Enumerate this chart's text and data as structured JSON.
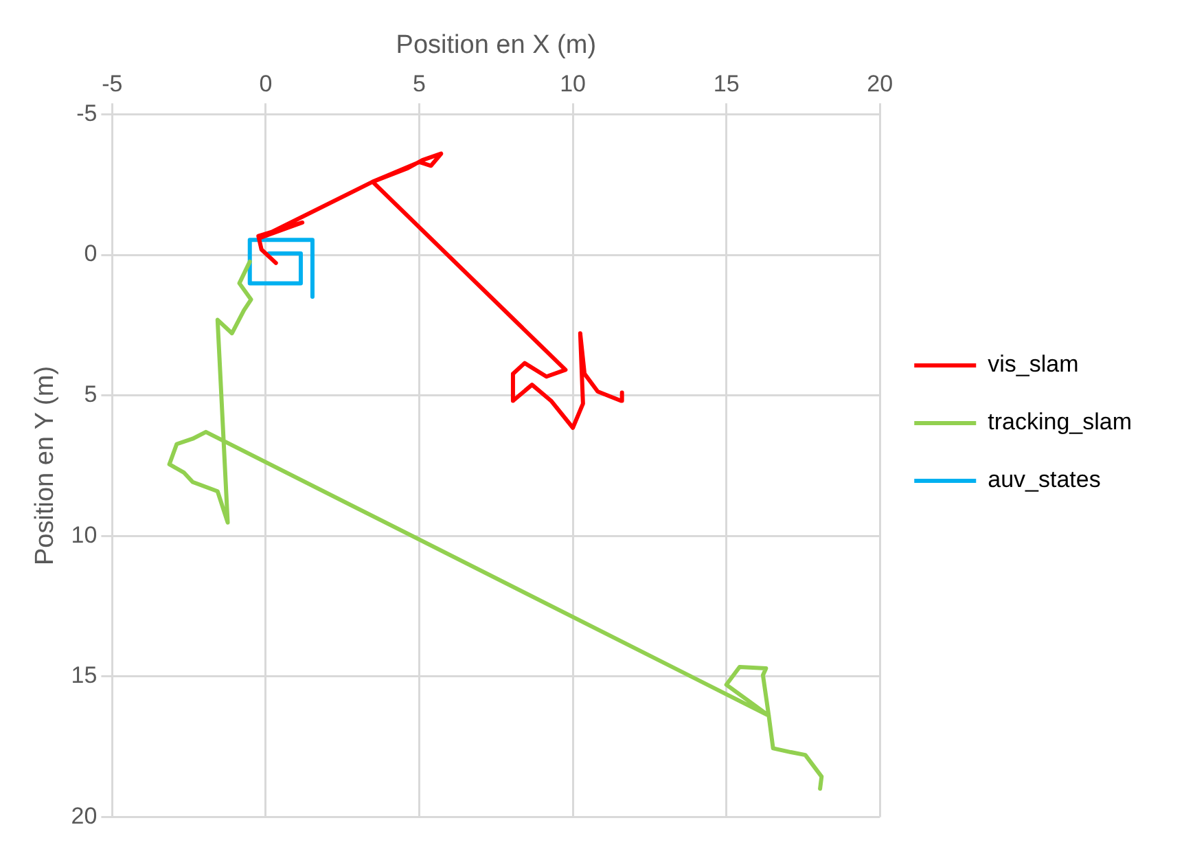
{
  "chart_data": {
    "type": "line",
    "xlabel": "Position en X (m)",
    "ylabel": "Position en Y (m)",
    "xlim": [
      -5,
      20
    ],
    "ylim": [
      20,
      -5
    ],
    "xticks": [
      -5,
      0,
      5,
      10,
      15,
      20
    ],
    "yticks": [
      -5,
      0,
      5,
      10,
      15,
      20
    ],
    "grid": true,
    "legend": "right",
    "marker": "none",
    "line_style": "solid",
    "series": [
      {
        "name": "vis_slam",
        "color": "#ff0000",
        "x": [
          0.33,
          -0.14,
          -0.24,
          1.19,
          -0.2,
          3.48,
          4.62,
          5.1,
          5.71,
          5.38,
          5.0,
          3.48,
          9.76,
          9.14,
          8.43,
          8.05,
          8.05,
          8.67,
          9.29,
          10.0,
          10.33,
          10.24,
          10.38,
          10.81,
          11.57,
          11.6
        ],
        "values": [
          0.29,
          -0.19,
          -0.67,
          -1.15,
          -0.6,
          -2.6,
          -3.08,
          -3.37,
          -3.6,
          -3.17,
          -3.3,
          -2.6,
          4.09,
          4.33,
          3.85,
          4.23,
          5.19,
          4.62,
          5.19,
          6.15,
          5.29,
          2.79,
          4.23,
          4.86,
          5.19,
          4.9
        ]
      },
      {
        "name": "tracking_slam",
        "color": "#92d050",
        "x": [
          -0.52,
          -0.86,
          -0.48,
          -0.71,
          -1.1,
          -1.57,
          -1.24,
          -1.57,
          -2.38,
          -2.67,
          -3.14,
          -2.9,
          -2.38,
          -1.95,
          16.38,
          15.0,
          15.43,
          16.29,
          16.19,
          16.38,
          16.52,
          17.1,
          17.57,
          18.1,
          18.05
        ],
        "values": [
          0.24,
          1.01,
          1.59,
          1.97,
          2.79,
          2.31,
          9.52,
          8.41,
          8.08,
          7.74,
          7.45,
          6.73,
          6.54,
          6.3,
          16.39,
          15.29,
          14.66,
          14.71,
          14.95,
          16.39,
          17.55,
          17.69,
          17.79,
          18.56,
          18.99
        ]
      },
      {
        "name": "auv_states",
        "color": "#00b0f0",
        "x": [
          0.1,
          1.14,
          1.14,
          -0.52,
          -0.52,
          1.52,
          1.52
        ],
        "values": [
          -0.05,
          -0.05,
          1.01,
          1.01,
          -0.53,
          -0.53,
          1.49
        ]
      }
    ]
  }
}
